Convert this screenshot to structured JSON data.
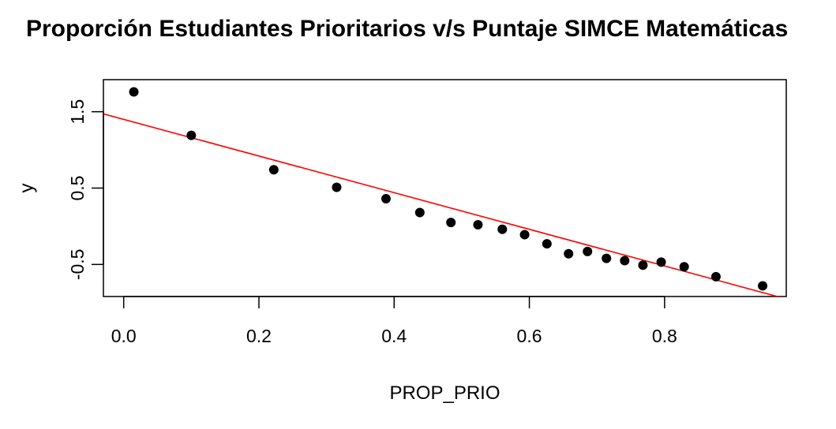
{
  "chart_data": {
    "type": "scatter",
    "title": "Proporción Estudiantes Prioritarios v/s Puntaje SIMCE Matemáticas",
    "xlabel": "PROP_PRIO",
    "ylabel": "y",
    "xlim": [
      -0.03,
      0.98
    ],
    "ylim": [
      -0.92,
      1.92
    ],
    "x_ticks": [
      0.0,
      0.2,
      0.4,
      0.6,
      0.8
    ],
    "x_tick_labels": [
      "0.0",
      "0.2",
      "0.4",
      "0.6",
      "0.8"
    ],
    "y_ticks": [
      -0.5,
      0.5,
      1.5
    ],
    "y_tick_labels": [
      "-0.5",
      "0.5",
      "1.5"
    ],
    "grid": false,
    "legend": "none",
    "point_color": "#000000",
    "line_color": "#ff0000",
    "points": [
      {
        "x": 0.015,
        "y": 1.76
      },
      {
        "x": 0.1,
        "y": 1.19
      },
      {
        "x": 0.222,
        "y": 0.74
      },
      {
        "x": 0.315,
        "y": 0.51
      },
      {
        "x": 0.388,
        "y": 0.36
      },
      {
        "x": 0.438,
        "y": 0.18
      },
      {
        "x": 0.484,
        "y": 0.05
      },
      {
        "x": 0.524,
        "y": 0.02
      },
      {
        "x": 0.56,
        "y": -0.04
      },
      {
        "x": 0.593,
        "y": -0.11
      },
      {
        "x": 0.626,
        "y": -0.23
      },
      {
        "x": 0.658,
        "y": -0.36
      },
      {
        "x": 0.686,
        "y": -0.33
      },
      {
        "x": 0.714,
        "y": -0.42
      },
      {
        "x": 0.741,
        "y": -0.45
      },
      {
        "x": 0.768,
        "y": -0.51
      },
      {
        "x": 0.795,
        "y": -0.47
      },
      {
        "x": 0.829,
        "y": -0.53
      },
      {
        "x": 0.876,
        "y": -0.66
      },
      {
        "x": 0.945,
        "y": -0.78
      }
    ],
    "fit_line": {
      "intercept": 1.4,
      "slope": -2.4
    }
  }
}
